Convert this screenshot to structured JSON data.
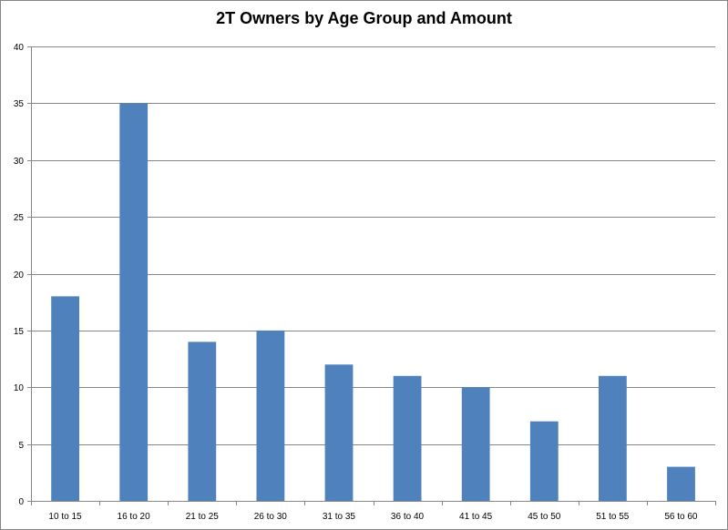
{
  "chart_data": {
    "type": "bar",
    "title": "2T Owners by Age Group and Amount",
    "xlabel": "",
    "ylabel": "",
    "categories": [
      "10 to 15",
      "16 to 20",
      "21 to 25",
      "26 to 30",
      "31 to 35",
      "36 to 40",
      "41 to 45",
      "45 to 50",
      "51 to 55",
      "56 to 60"
    ],
    "values": [
      18,
      35,
      14,
      15,
      12,
      11,
      10,
      7,
      11,
      3
    ],
    "ylim": [
      0,
      40
    ],
    "yticks": [
      0,
      5,
      10,
      15,
      20,
      25,
      30,
      35,
      40
    ],
    "grid": true,
    "legend": "none"
  },
  "colors": {
    "bar": "#4f81bd",
    "grid": "#868686",
    "axis": "#868686"
  }
}
